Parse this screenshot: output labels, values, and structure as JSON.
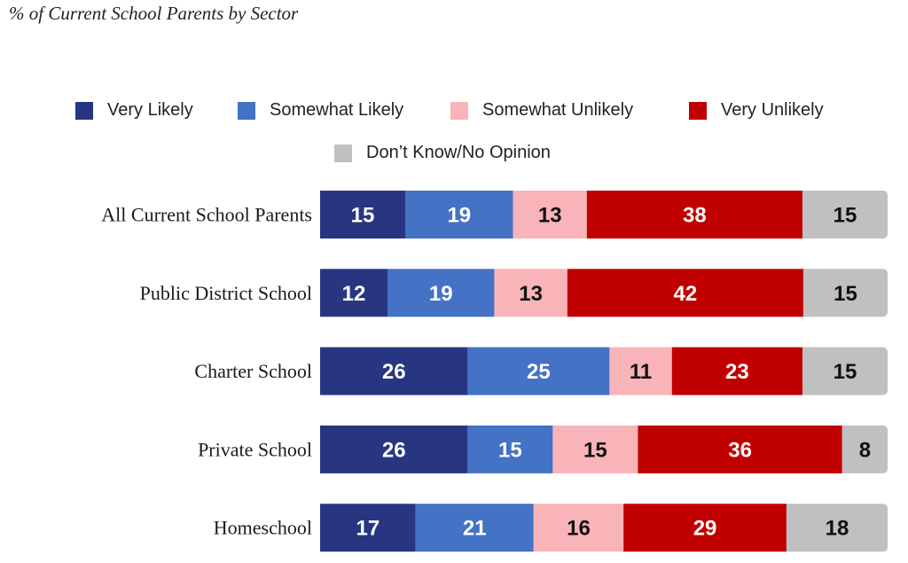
{
  "chart_data": {
    "type": "bar",
    "orientation": "horizontal",
    "stacked": true,
    "title": "% of Current School Parents by Sector",
    "categories": [
      "All Current School Parents",
      "Public District School",
      "Charter School",
      "Private School",
      "Homeschool"
    ],
    "series": [
      {
        "name": "Very Likely",
        "color": "#283681",
        "values": [
          15,
          12,
          26,
          26,
          17
        ]
      },
      {
        "name": "Somewhat Likely",
        "color": "#4472c4",
        "values": [
          19,
          19,
          25,
          15,
          21
        ]
      },
      {
        "name": "Somewhat Unlikely",
        "color": "#f8b4b8",
        "values": [
          13,
          13,
          11,
          15,
          16
        ]
      },
      {
        "name": "Very Unlikely",
        "color": "#c00000",
        "values": [
          38,
          42,
          23,
          36,
          29
        ]
      },
      {
        "name": "Don’t Know/No Opinion",
        "color": "#c0c0c0",
        "values": [
          15,
          15,
          15,
          8,
          18
        ]
      }
    ],
    "legend_position": "top",
    "grid": false
  }
}
